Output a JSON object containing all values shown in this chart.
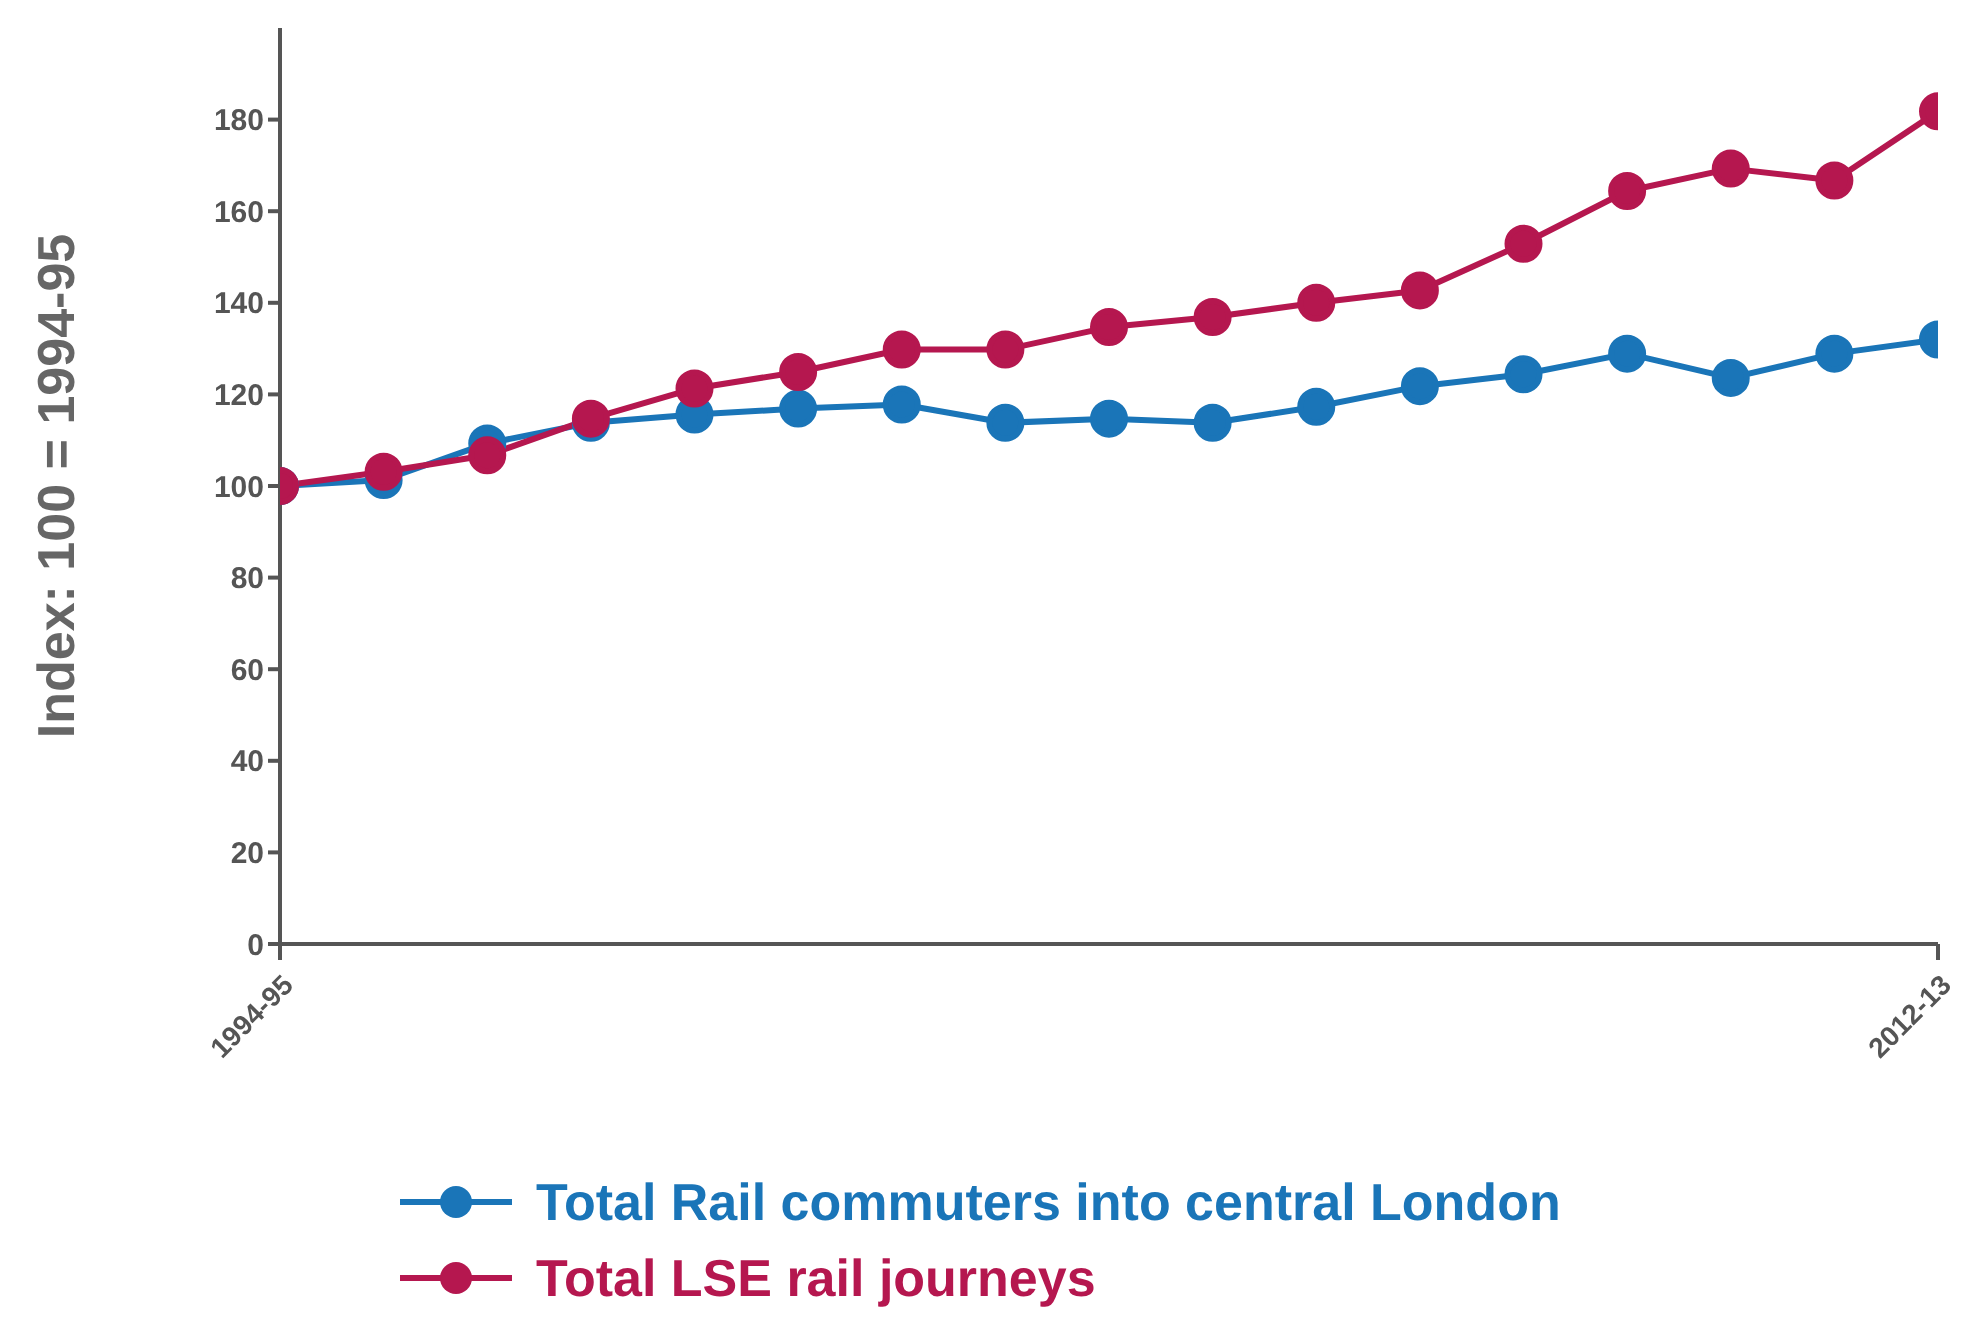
{
  "chart_data": {
    "type": "line",
    "ylabel": "Index: 100 = 1994-95",
    "categories": [
      "1994-95",
      null,
      null,
      null,
      null,
      null,
      null,
      null,
      null,
      null,
      null,
      null,
      null,
      null,
      null,
      null,
      "2012-13"
    ],
    "series": [
      {
        "name": "Total Rail commuters into central London",
        "color": "#1a75b8",
        "values": [
          100,
          101.3,
          109.3,
          113.8,
          115.6,
          116.9,
          117.8,
          113.8,
          114.7,
          113.8,
          117.3,
          121.8,
          124.4,
          128.9,
          123.6,
          128.9,
          132
        ]
      },
      {
        "name": "Total LSE rail journeys",
        "color": "#b5174f",
        "values": [
          100,
          103.1,
          106.7,
          114.7,
          121.3,
          124.9,
          129.8,
          129.8,
          134.7,
          136.9,
          140,
          142.7,
          152.9,
          164.4,
          169.3,
          166.7,
          181.8
        ]
      }
    ],
    "ylim": [
      0,
      200
    ],
    "yticks": [
      0,
      20,
      40,
      60,
      80,
      100,
      120,
      140,
      160,
      180
    ],
    "grid": false,
    "legend": "bottom",
    "marker": "circle",
    "line_style": "solid"
  }
}
